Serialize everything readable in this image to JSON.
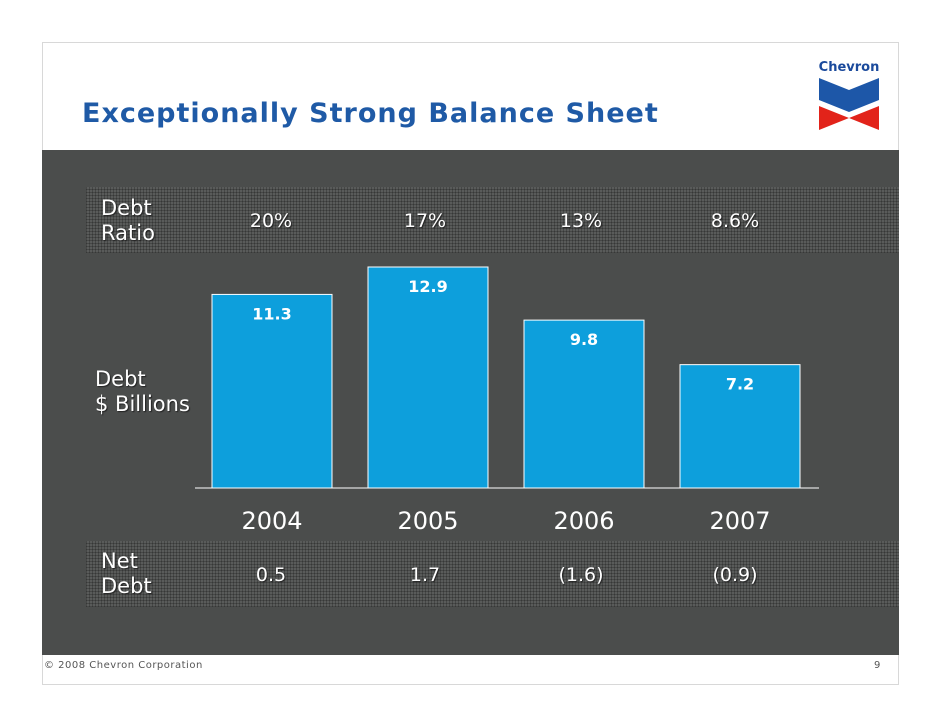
{
  "title": "Exceptionally Strong Balance Sheet",
  "logo_text": "Chevron",
  "debt_ratio": {
    "label_line1": "Debt",
    "label_line2": "Ratio",
    "values": [
      "20%",
      "17%",
      "13%",
      "8.6%"
    ]
  },
  "debt_label": {
    "line1": "Debt",
    "line2": "$ Billions"
  },
  "net_debt": {
    "label_line1": "Net",
    "label_line2": "Debt",
    "values": [
      "0.5",
      "1.7",
      "(1.6)",
      "(0.9)"
    ]
  },
  "chart_data": {
    "type": "bar",
    "categories": [
      "2004",
      "2005",
      "2006",
      "2007"
    ],
    "values": [
      11.3,
      12.9,
      9.8,
      7.2
    ],
    "value_labels": [
      "11.3",
      "12.9",
      "9.8",
      "7.2"
    ],
    "ylim": [
      0,
      14
    ],
    "bar_color": "#0d9fdc",
    "grid": false
  },
  "footer": {
    "copyright": "© 2008 Chevron Corporation",
    "page_number": "9"
  },
  "colors": {
    "title": "#1f5aa6",
    "panel": "#4b4d4c",
    "bar": "#0d9fdc",
    "text_on_panel": "#ffffff"
  }
}
